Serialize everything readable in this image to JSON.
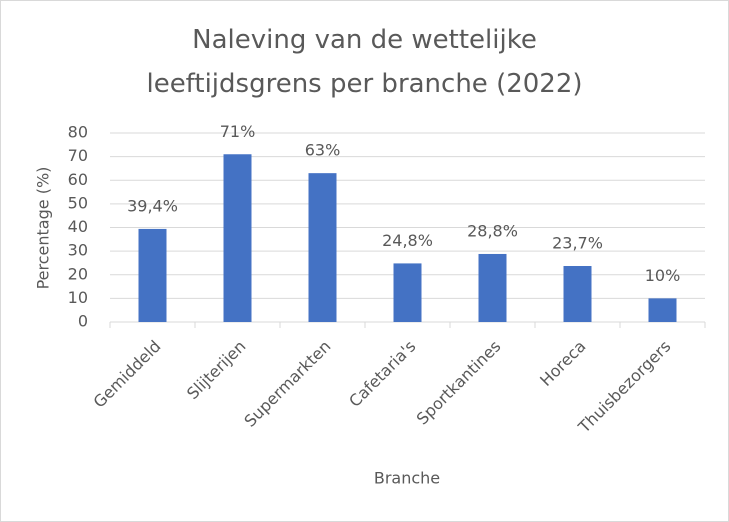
{
  "chart_data": {
    "type": "bar",
    "title": "Naleving van de wettelijke leeftijdsgrens per branche (2022)",
    "x_label": "Branche",
    "y_label": "Percentage (%)",
    "categories": [
      "Gemiddeld",
      "Slijterijen",
      "Supermarkten",
      "Cafetaria's",
      "Sportkantines",
      "Horeca",
      "Thuisbezorgers"
    ],
    "values": [
      39.4,
      71,
      63,
      24.8,
      28.8,
      23.7,
      10
    ],
    "value_labels": [
      "39,4%",
      "71%",
      "63%",
      "24,8%",
      "28,8%",
      "23,7%",
      "10%"
    ],
    "color": "#4472c4",
    "ylim": [
      0,
      80
    ],
    "yticks": [
      0,
      10,
      20,
      30,
      40,
      50,
      60,
      70,
      80
    ],
    "grid": true
  }
}
